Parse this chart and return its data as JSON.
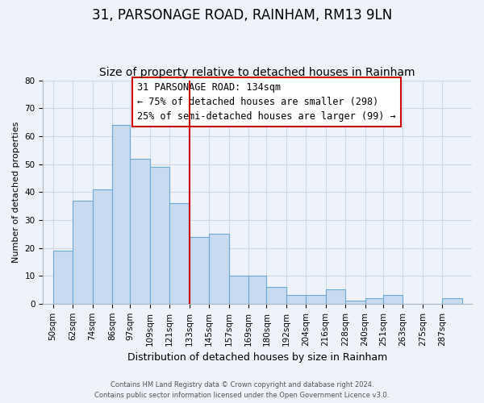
{
  "title": "31, PARSONAGE ROAD, RAINHAM, RM13 9LN",
  "subtitle": "Size of property relative to detached houses in Rainham",
  "xlabel": "Distribution of detached houses by size in Rainham",
  "ylabel": "Number of detached properties",
  "bar_labels": [
    "50sqm",
    "62sqm",
    "74sqm",
    "86sqm",
    "97sqm",
    "109sqm",
    "121sqm",
    "133sqm",
    "145sqm",
    "157sqm",
    "169sqm",
    "180sqm",
    "192sqm",
    "204sqm",
    "216sqm",
    "228sqm",
    "240sqm",
    "251sqm",
    "263sqm",
    "275sqm",
    "287sqm"
  ],
  "bar_values": [
    19,
    37,
    41,
    64,
    52,
    49,
    36,
    24,
    25,
    10,
    10,
    6,
    3,
    3,
    5,
    1,
    2,
    3,
    0,
    0,
    2
  ],
  "bar_edges": [
    50,
    62,
    74,
    86,
    97,
    109,
    121,
    133,
    145,
    157,
    169,
    180,
    192,
    204,
    216,
    228,
    240,
    251,
    263,
    275,
    287,
    299
  ],
  "bar_color": "#c8daf0",
  "bar_edge_color": "#6aaad4",
  "vline_x": 133,
  "vline_color": "#cc0000",
  "annotation_title": "31 PARSONAGE ROAD: 134sqm",
  "annotation_line1": "← 75% of detached houses are smaller (298)",
  "annotation_line2": "25% of semi-detached houses are larger (99) →",
  "annotation_box_color": "#ffffff",
  "annotation_border_color": "#cc0000",
  "ylim": [
    0,
    80
  ],
  "xlim": [
    44,
    305
  ],
  "background_color": "#eef2fa",
  "plot_bg_color": "#eef2fa",
  "grid_color": "#d0d8e8",
  "footer_line1": "Contains HM Land Registry data © Crown copyright and database right 2024.",
  "footer_line2": "Contains public sector information licensed under the Open Government Licence v3.0.",
  "title_fontsize": 12,
  "subtitle_fontsize": 10,
  "ylabel_fontsize": 8,
  "xlabel_fontsize": 9,
  "tick_fontsize": 7.5,
  "annot_fontsize": 8.5
}
